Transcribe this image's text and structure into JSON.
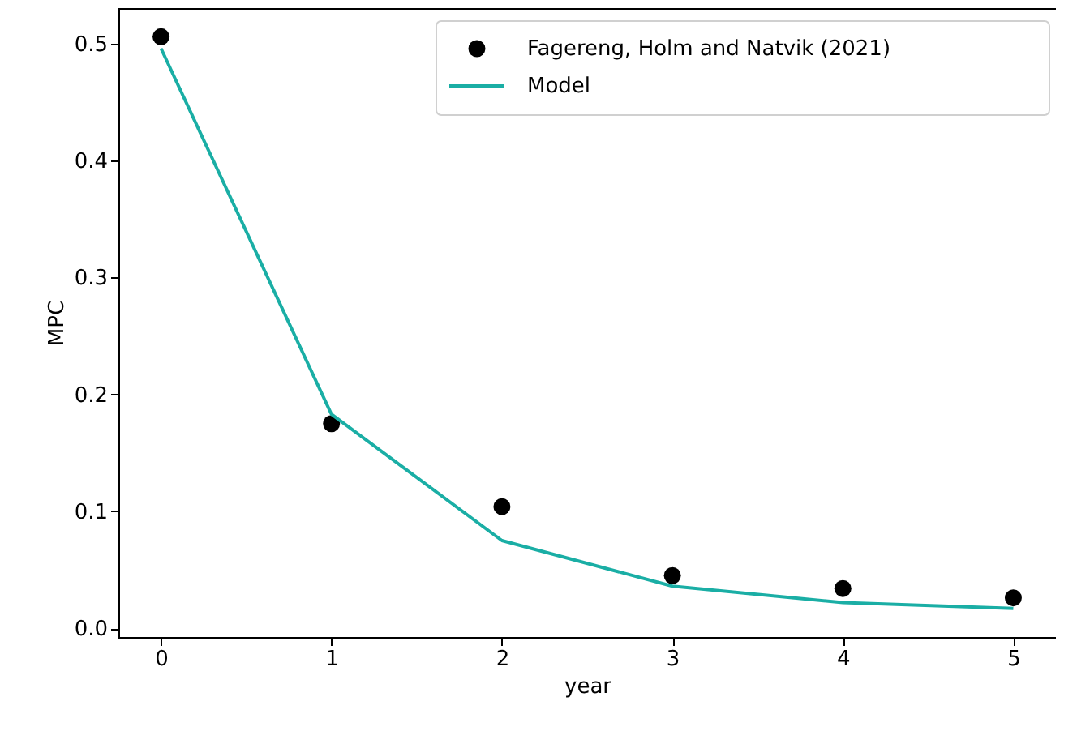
{
  "chart_data": {
    "type": "scatter",
    "xlabel": "year",
    "ylabel": "MPC",
    "x": [
      0,
      1,
      2,
      3,
      4,
      5
    ],
    "series": [
      {
        "name": "Fagereng, Holm and Natvik (2021)",
        "type": "scatter",
        "color": "#000000",
        "marker": "circle",
        "values": [
          0.506,
          0.175,
          0.104,
          0.045,
          0.034,
          0.026
        ]
      },
      {
        "name": "Model",
        "type": "line",
        "color": "#1aaea5",
        "line_style": "solid",
        "values": [
          0.496,
          0.183,
          0.075,
          0.036,
          0.022,
          0.017
        ]
      }
    ],
    "xlim": [
      -0.25,
      5.25
    ],
    "xticks": [
      0,
      1,
      2,
      3,
      4,
      5
    ],
    "ylim": [
      -0.0075,
      0.5305
    ],
    "yticks": [
      {
        "value": 0,
        "label": "0.0"
      },
      0.1,
      0.2,
      0.3,
      0.4,
      0.5
    ],
    "grid": false,
    "legend": "top right"
  }
}
